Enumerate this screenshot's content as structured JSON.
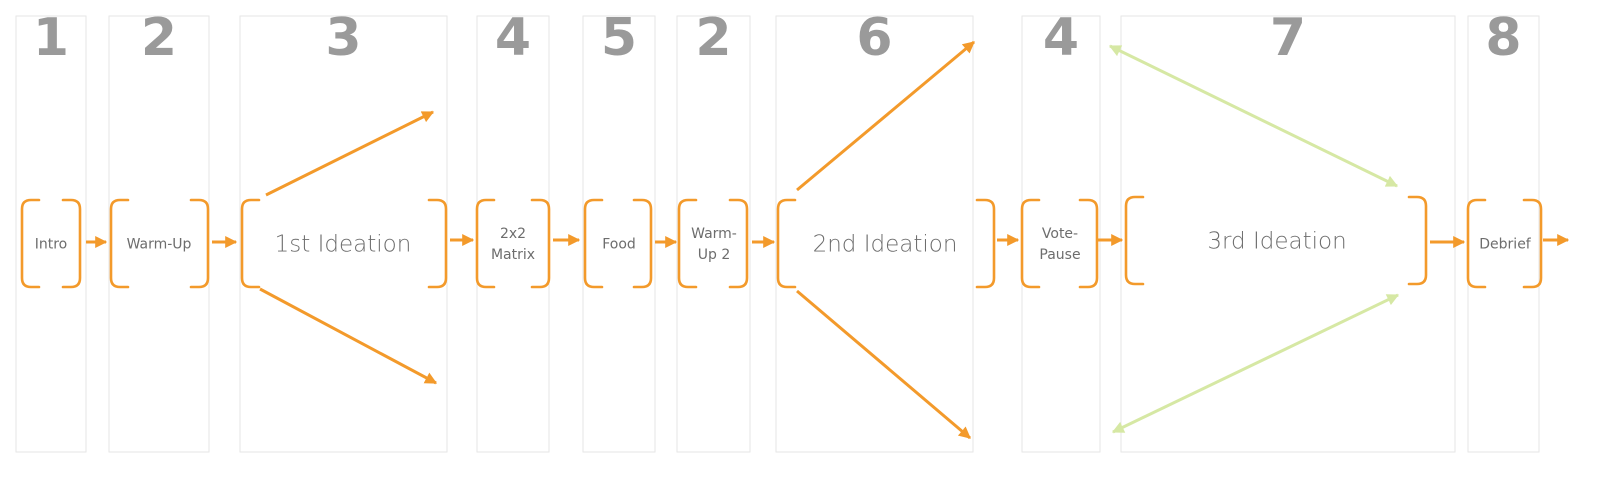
{
  "columns": [
    {
      "number": "1",
      "label_lines": [
        "Intro"
      ]
    },
    {
      "number": "2",
      "label_lines": [
        "Warm-Up"
      ]
    },
    {
      "number": "3",
      "label_lines": [
        "1st Ideation"
      ]
    },
    {
      "number": "4",
      "label_lines": [
        "2x2",
        "Matrix"
      ]
    },
    {
      "number": "5",
      "label_lines": [
        "Food"
      ]
    },
    {
      "number": "2",
      "label_lines": [
        "Warm-",
        "Up 2"
      ]
    },
    {
      "number": "6",
      "label_lines": [
        "2nd Ideation"
      ]
    },
    {
      "number": "4",
      "label_lines": [
        "Vote-",
        "Pause"
      ]
    },
    {
      "number": "7",
      "label_lines": [
        "3rd Ideation"
      ]
    },
    {
      "number": "8",
      "label_lines": [
        "Debrief"
      ]
    }
  ],
  "colors": {
    "accent_orange": "#f39a2b",
    "accent_green": "#d6e8a4",
    "column_border": "#e6e6e6",
    "number_gray": "#9a9a9a",
    "label_gray": "#6d6d6d"
  }
}
